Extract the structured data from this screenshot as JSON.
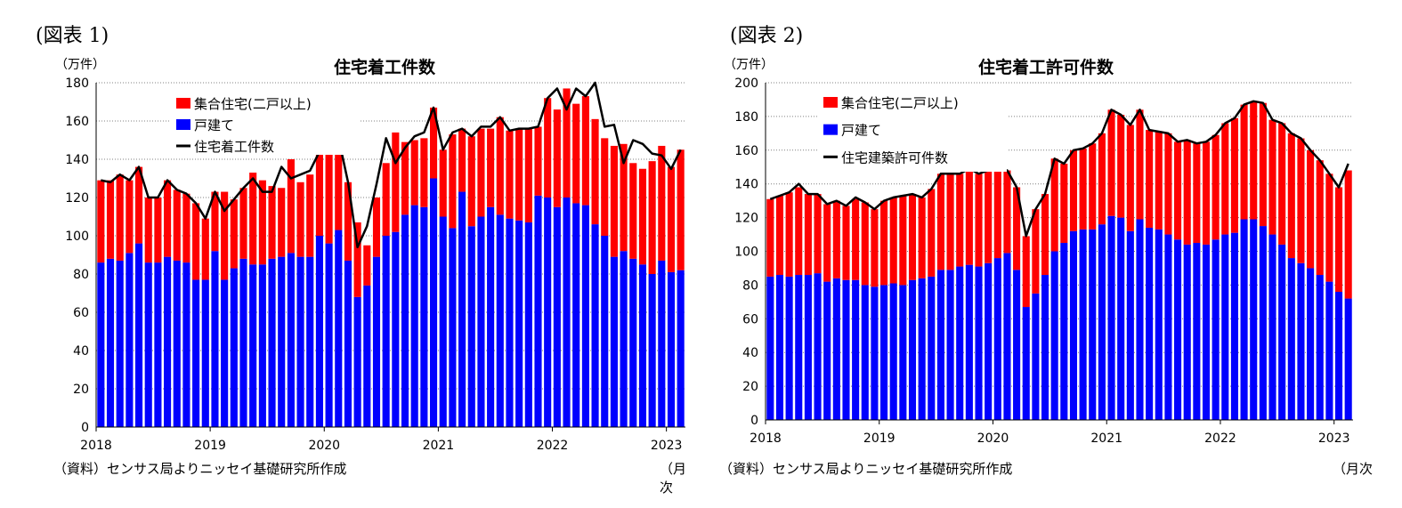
{
  "colors": {
    "multi": "#ff0000",
    "single": "#0000ff",
    "total_line": "#000000",
    "grid": "#808080"
  },
  "chart_data": [
    {
      "figure_label": "(図表 1)",
      "type": "bar",
      "stacked": true,
      "title": "住宅着工件数",
      "unit_label": "（万件）",
      "x_unit_label": "（月次",
      "source": "（資料）センサス局よりニッセイ基礎研究所作成",
      "ylim": [
        0,
        180
      ],
      "yticks": [
        0,
        20,
        40,
        60,
        80,
        100,
        120,
        140,
        160,
        180
      ],
      "grid": true,
      "legend_position": "top-left inside plot",
      "x_tick_labels": [
        "2018",
        "2019",
        "2020",
        "2021",
        "2022",
        "2023"
      ],
      "x": [
        "2018-01",
        "2018-02",
        "2018-03",
        "2018-04",
        "2018-05",
        "2018-06",
        "2018-07",
        "2018-08",
        "2018-09",
        "2018-10",
        "2018-11",
        "2018-12",
        "2019-01",
        "2019-02",
        "2019-03",
        "2019-04",
        "2019-05",
        "2019-06",
        "2019-07",
        "2019-08",
        "2019-09",
        "2019-10",
        "2019-11",
        "2019-12",
        "2020-01",
        "2020-02",
        "2020-03",
        "2020-04",
        "2020-05",
        "2020-06",
        "2020-07",
        "2020-08",
        "2020-09",
        "2020-10",
        "2020-11",
        "2020-12",
        "2021-01",
        "2021-02",
        "2021-03",
        "2021-04",
        "2021-05",
        "2021-06",
        "2021-07",
        "2021-08",
        "2021-09",
        "2021-10",
        "2021-11",
        "2021-12",
        "2022-01",
        "2022-02",
        "2022-03",
        "2022-04",
        "2022-05",
        "2022-06",
        "2022-07",
        "2022-08",
        "2022-09",
        "2022-10",
        "2022-11",
        "2022-12",
        "2023-01",
        "2023-02"
      ],
      "series": [
        {
          "name": "集合住宅(二戸以上)",
          "color": "#ff0000",
          "kind": "bar",
          "values": [
            43,
            41,
            45,
            38,
            40,
            34,
            34,
            40,
            37,
            36,
            40,
            32,
            31,
            46,
            36,
            37,
            48,
            44,
            38,
            36,
            49,
            39,
            43,
            44,
            58,
            48,
            41,
            39,
            21,
            31,
            38,
            52,
            38,
            34,
            36,
            37,
            35,
            49,
            33,
            47,
            46,
            41,
            51,
            46,
            48,
            49,
            36,
            52,
            51,
            57,
            52,
            57,
            55,
            51,
            58,
            56,
            50,
            50,
            59,
            60,
            55,
            63
          ]
        },
        {
          "name": "戸建て",
          "color": "#0000ff",
          "kind": "bar",
          "values": [
            86,
            88,
            87,
            91,
            96,
            86,
            86,
            89,
            87,
            86,
            77,
            77,
            92,
            77,
            83,
            88,
            85,
            85,
            88,
            89,
            91,
            89,
            89,
            100,
            96,
            103,
            87,
            68,
            74,
            89,
            100,
            102,
            111,
            116,
            115,
            130,
            110,
            104,
            123,
            105,
            110,
            115,
            111,
            109,
            108,
            107,
            121,
            120,
            115,
            120,
            117,
            116,
            106,
            100,
            89,
            92,
            88,
            85,
            80,
            87,
            81,
            82
          ]
        },
        {
          "name": "住宅着工件数",
          "color": "#000000",
          "kind": "line",
          "values": [
            129,
            128,
            132,
            129,
            136,
            120,
            120,
            129,
            124,
            122,
            117,
            109,
            123,
            113,
            119,
            125,
            130,
            123,
            123,
            136,
            130,
            132,
            134,
            144,
            154,
            151,
            128,
            94,
            105,
            127,
            151,
            138,
            146,
            152,
            154,
            167,
            145,
            154,
            156,
            152,
            157,
            157,
            162,
            155,
            156,
            156,
            157,
            172,
            177,
            166,
            177,
            173,
            180,
            157,
            158,
            138,
            150,
            148,
            143,
            142,
            135,
            145
          ]
        }
      ]
    },
    {
      "figure_label": "(図表 2)",
      "type": "bar",
      "stacked": true,
      "title": "住宅着工許可件数",
      "unit_label": "（万件）",
      "x_unit_label": "（月次",
      "source": "（資料）センサス局よりニッセイ基礎研究所作成",
      "ylim": [
        0,
        200
      ],
      "yticks": [
        0,
        20,
        40,
        60,
        80,
        100,
        120,
        140,
        160,
        180,
        200
      ],
      "grid": true,
      "legend_position": "top-left inside plot",
      "x_tick_labels": [
        "2018",
        "2019",
        "2020",
        "2021",
        "2022",
        "2023"
      ],
      "x": [
        "2018-01",
        "2018-02",
        "2018-03",
        "2018-04",
        "2018-05",
        "2018-06",
        "2018-07",
        "2018-08",
        "2018-09",
        "2018-10",
        "2018-11",
        "2018-12",
        "2019-01",
        "2019-02",
        "2019-03",
        "2019-04",
        "2019-05",
        "2019-06",
        "2019-07",
        "2019-08",
        "2019-09",
        "2019-10",
        "2019-11",
        "2019-12",
        "2020-01",
        "2020-02",
        "2020-03",
        "2020-04",
        "2020-05",
        "2020-06",
        "2020-07",
        "2020-08",
        "2020-09",
        "2020-10",
        "2020-11",
        "2020-12",
        "2021-01",
        "2021-02",
        "2021-03",
        "2021-04",
        "2021-05",
        "2021-06",
        "2021-07",
        "2021-08",
        "2021-09",
        "2021-10",
        "2021-11",
        "2021-12",
        "2022-01",
        "2022-02",
        "2022-03",
        "2022-04",
        "2022-05",
        "2022-06",
        "2022-07",
        "2022-08",
        "2022-09",
        "2022-10",
        "2022-11",
        "2022-12",
        "2023-01",
        "2023-02"
      ],
      "series": [
        {
          "name": "集合住宅(二戸以上)",
          "color": "#ff0000",
          "kind": "bar",
          "values": [
            46,
            47,
            50,
            52,
            48,
            47,
            46,
            46,
            44,
            48,
            49,
            46,
            50,
            51,
            53,
            51,
            48,
            52,
            57,
            57,
            55,
            57,
            55,
            55,
            54,
            49,
            49,
            42,
            50,
            48,
            55,
            47,
            48,
            48,
            51,
            54,
            63,
            61,
            63,
            65,
            58,
            58,
            60,
            58,
            62,
            59,
            61,
            62,
            66,
            68,
            68,
            70,
            73,
            68,
            72,
            74,
            74,
            70,
            68,
            64,
            62,
            76
          ]
        },
        {
          "name": "戸建て",
          "color": "#0000ff",
          "kind": "bar",
          "values": [
            85,
            86,
            85,
            86,
            86,
            87,
            82,
            84,
            83,
            83,
            80,
            79,
            80,
            81,
            80,
            83,
            84,
            85,
            89,
            89,
            91,
            92,
            91,
            93,
            96,
            99,
            89,
            67,
            75,
            86,
            100,
            105,
            112,
            113,
            113,
            116,
            121,
            120,
            112,
            119,
            114,
            113,
            110,
            107,
            104,
            105,
            104,
            107,
            110,
            111,
            119,
            119,
            115,
            110,
            104,
            96,
            93,
            90,
            86,
            82,
            76,
            72
          ]
        },
        {
          "name": "住宅建築許可件数",
          "color": "#000000",
          "kind": "line",
          "values": [
            131,
            133,
            135,
            140,
            134,
            134,
            128,
            130,
            127,
            132,
            129,
            125,
            130,
            132,
            133,
            134,
            132,
            137,
            146,
            146,
            146,
            149,
            146,
            148,
            150,
            148,
            138,
            109,
            125,
            134,
            155,
            152,
            160,
            161,
            164,
            170,
            184,
            181,
            175,
            184,
            172,
            171,
            170,
            165,
            166,
            164,
            165,
            169,
            176,
            179,
            187,
            189,
            188,
            178,
            176,
            170,
            167,
            160,
            154,
            146,
            138,
            152
          ]
        }
      ]
    }
  ]
}
